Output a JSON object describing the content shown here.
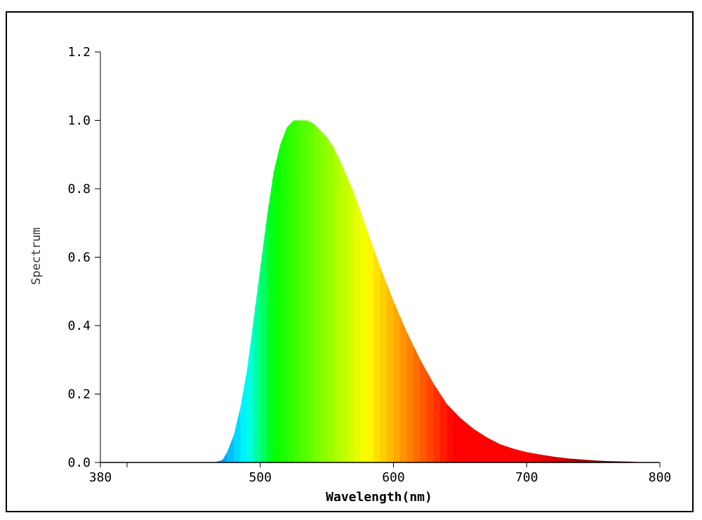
{
  "chart_data": {
    "type": "area",
    "title": "",
    "xlabel": "Wavelength(nm)",
    "ylabel": "Spectrum",
    "xlim": [
      380,
      800
    ],
    "ylim": [
      0.0,
      1.2
    ],
    "x_ticks": [
      380,
      400,
      500,
      600,
      700,
      800
    ],
    "x_tick_labels": [
      "380",
      "",
      "500",
      "600",
      "700",
      "800"
    ],
    "y_ticks": [
      0.0,
      0.2,
      0.4,
      0.6,
      0.8,
      1.0,
      1.2
    ],
    "y_tick_labels": [
      "0.0",
      "0.2",
      "0.4",
      "0.6",
      "0.8",
      "1.0",
      "1.2"
    ],
    "grid": false,
    "fill": "visible-spectrum-colors",
    "series": [
      {
        "x": [
          380,
          400,
          420,
          440,
          460,
          465,
          470,
          472,
          475,
          480,
          485,
          490,
          495,
          500,
          505,
          510,
          515,
          520,
          525,
          530,
          535,
          540,
          545,
          550,
          555,
          560,
          570,
          580,
          590,
          600,
          610,
          620,
          630,
          640,
          650,
          660,
          670,
          680,
          690,
          700,
          710,
          720,
          730,
          740,
          750,
          760,
          770,
          780,
          786
        ],
        "values": [
          0,
          0,
          0,
          0,
          0,
          0,
          0.005,
          0.01,
          0.03,
          0.08,
          0.16,
          0.27,
          0.42,
          0.57,
          0.72,
          0.85,
          0.93,
          0.98,
          1.0,
          1.0,
          1.0,
          0.99,
          0.97,
          0.95,
          0.92,
          0.88,
          0.79,
          0.68,
          0.57,
          0.47,
          0.38,
          0.3,
          0.23,
          0.17,
          0.13,
          0.098,
          0.073,
          0.053,
          0.04,
          0.03,
          0.023,
          0.017,
          0.012,
          0.009,
          0.006,
          0.004,
          0.003,
          0.002,
          0
        ]
      }
    ]
  }
}
